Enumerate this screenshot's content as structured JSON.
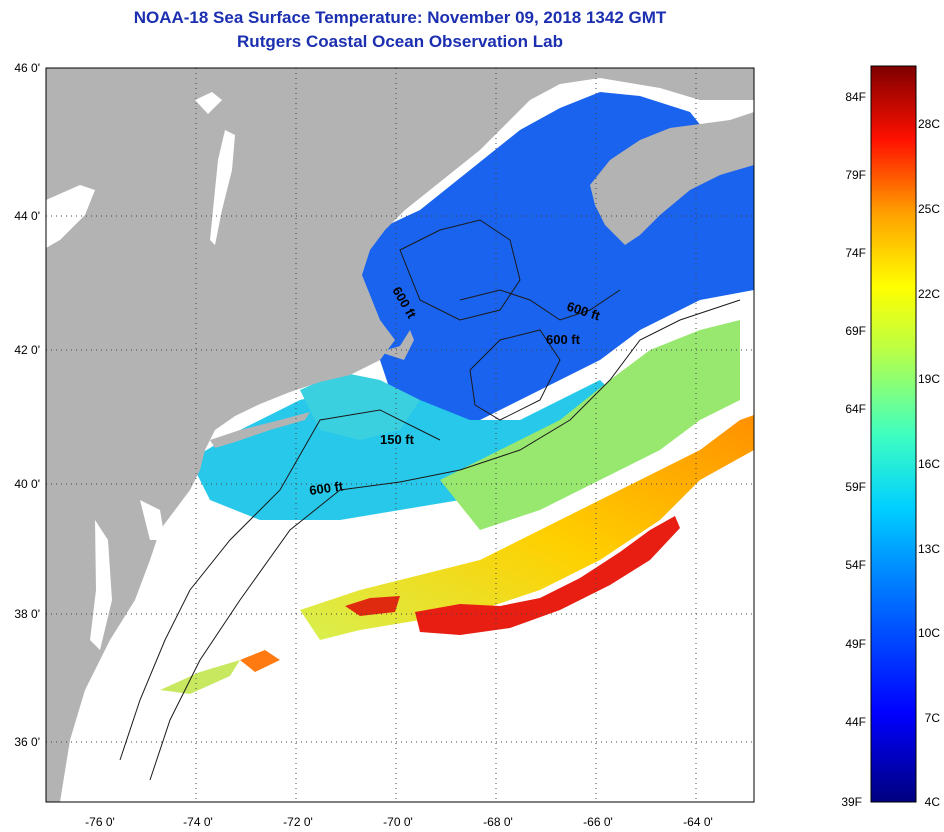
{
  "title": "NOAA-18 Sea Surface Temperature:  November 09, 2018 1342 GMT",
  "subtitle": "Rutgers Coastal Ocean Observation Lab",
  "axes": {
    "lat_labels": [
      "46 0'",
      "44 0'",
      "42 0'",
      "40 0'",
      "38 0'",
      "36 0'"
    ],
    "lon_labels": [
      "-76 0'",
      "-74 0'",
      "-72 0'",
      "-70 0'",
      "-68 0'",
      "-66 0'",
      "-64 0'"
    ]
  },
  "contours": {
    "label_a": "600 ft",
    "label_b": "600 ft",
    "label_c": "600 ft",
    "label_d": "150 ft",
    "label_e": "600 ft"
  },
  "colorbar": {
    "fahrenheit": [
      "84F",
      "79F",
      "74F",
      "69F",
      "64F",
      "59F",
      "54F",
      "49F",
      "44F",
      "39F"
    ],
    "celsius": [
      "28C",
      "25C",
      "22C",
      "19C",
      "16C",
      "13C",
      "10C",
      "7C",
      "4C"
    ]
  },
  "colors": {
    "land": "#b3b3b3",
    "cloud": "#ffffff",
    "title": "#1b2fb0"
  }
}
